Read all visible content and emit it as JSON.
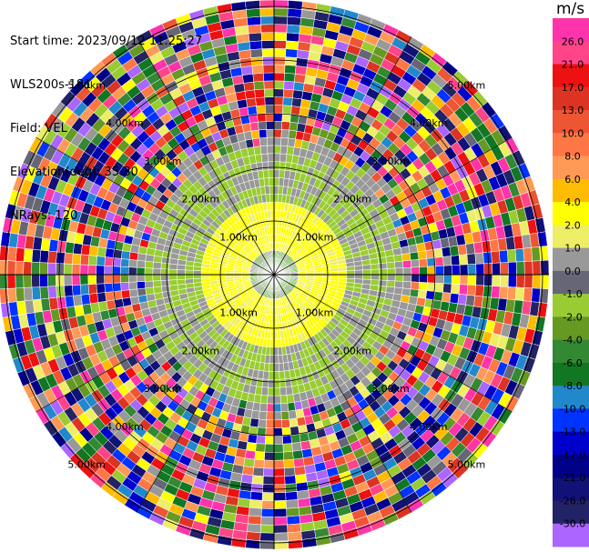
{
  "header": {
    "start_time": "Start time: 2023/09/12 11:25:27",
    "instrument": "WLS200s-181",
    "field": "Field: VEL",
    "elevation": "Elevation(deg): 35.30",
    "nrays": "NRays: 120"
  },
  "colorbar": {
    "unit": "m/s",
    "ticks": [
      "26.0",
      "21.0",
      "17.0",
      "13.0",
      "10.0",
      "8.0",
      "6.0",
      "4.0",
      "2.0",
      "1.0",
      "0.0",
      "-1.0",
      "-2.0",
      "-4.0",
      "-6.0",
      "-8.0",
      "-10.0",
      "-13.0",
      "-17.0",
      "-21.0",
      "-26.0",
      "-30.0"
    ],
    "colors": [
      "#ff33aa",
      "#ff4488",
      "#ee1111",
      "#dd3322",
      "#ee5533",
      "#ff7744",
      "#ff9955",
      "#ffbb00",
      "#ffff00",
      "#eeee66",
      "#999999",
      "#666677",
      "#99cc33",
      "#669922",
      "#338833",
      "#117722",
      "#2288cc",
      "#0033ff",
      "#0000cc",
      "#000088",
      "#111177",
      "#222266",
      "#aa66ff"
    ]
  },
  "chart_data": {
    "type": "heatmap",
    "title": "",
    "ring_labels_km": [
      "1.00km",
      "2.00km",
      "3.00km",
      "4.00km",
      "5.00km"
    ],
    "center_pattern": "yellow ring near 1.5km, green ring near 2-3km, noisy multicolor beyond 3km",
    "ring_label_positions_deg": [
      45,
      135,
      225,
      315
    ]
  }
}
